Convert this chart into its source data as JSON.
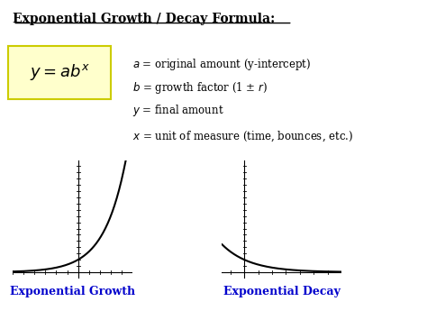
{
  "title": "Exponential Growth / Decay Formula:",
  "formula_display": "$y = ab^x$",
  "annotations": [
    "$a$ = original amount (y-intercept)",
    "$b$ = growth factor (1 ± $r$)",
    "$y$ = final amount",
    "$x$ = unit of measure (time, bounces, etc.)"
  ],
  "growth_label": "Exponential Growth",
  "decay_label": "Exponential Decay",
  "box_facecolor": "#ffffcc",
  "box_edgecolor": "#cccc00",
  "title_color": "#000000",
  "label_color": "#0000cc",
  "curve_color": "#000000",
  "background_color": "#ffffff",
  "annotation_color": "#000000"
}
